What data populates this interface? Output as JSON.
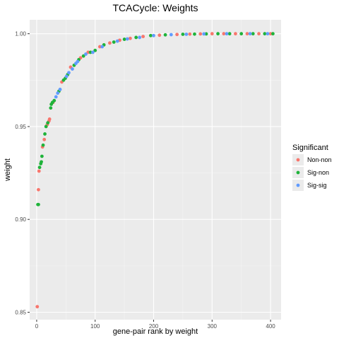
{
  "chart_data": {
    "type": "scatter",
    "title": "TCACycle: Weights",
    "xlabel": "gene-pair rank by weight",
    "ylabel": "weight",
    "xlim": [
      -12,
      418
    ],
    "ylim": [
      0.846,
      1.0075
    ],
    "x_ticks": [
      {
        "value": 0,
        "label": "0"
      },
      {
        "value": 100,
        "label": "100"
      },
      {
        "value": 200,
        "label": "200"
      },
      {
        "value": 300,
        "label": "300"
      },
      {
        "value": 400,
        "label": "400"
      }
    ],
    "y_ticks": [
      {
        "value": 0.85,
        "label": "0.85"
      },
      {
        "value": 0.9,
        "label": "0.90"
      },
      {
        "value": 0.95,
        "label": "0.95"
      },
      {
        "value": 1.0,
        "label": "1.00"
      }
    ],
    "grid": true,
    "legend": {
      "title": "Significant",
      "placement": "right",
      "entries": [
        "Non-non",
        "Sig-non",
        "Sig-sig"
      ]
    },
    "series": [
      {
        "name": "Non-non",
        "color": "#f8766d",
        "points": [
          [
            1,
            0.853
          ],
          [
            3,
            0.916
          ],
          [
            4,
            0.926
          ],
          [
            10,
            0.939
          ],
          [
            13,
            0.943
          ],
          [
            18,
            0.951
          ],
          [
            21,
            0.953
          ],
          [
            22,
            0.954
          ],
          [
            28,
            0.963
          ],
          [
            43,
            0.974
          ],
          [
            58,
            0.982
          ],
          [
            75,
            0.987
          ],
          [
            88,
            0.99
          ],
          [
            108,
            0.993
          ],
          [
            125,
            0.995
          ],
          [
            142,
            0.9965
          ],
          [
            160,
            0.9975
          ],
          [
            182,
            0.9985
          ],
          [
            210,
            0.9992
          ],
          [
            240,
            0.9996
          ],
          [
            262,
            0.9998
          ],
          [
            280,
            0.9999
          ],
          [
            300,
            1.0
          ],
          [
            320,
            1.0
          ],
          [
            340,
            1.0
          ],
          [
            360,
            1.0
          ],
          [
            380,
            1.0
          ],
          [
            400,
            1.0
          ]
        ]
      },
      {
        "name": "Sig-non",
        "color": "#1fb33a",
        "points": [
          [
            2,
            0.908
          ],
          [
            3,
            0.908
          ],
          [
            5,
            0.928
          ],
          [
            7,
            0.93
          ],
          [
            8,
            0.931
          ],
          [
            9,
            0.934
          ],
          [
            11,
            0.94
          ],
          [
            14,
            0.946
          ],
          [
            16,
            0.95
          ],
          [
            19,
            0.952
          ],
          [
            24,
            0.96
          ],
          [
            25,
            0.962
          ],
          [
            27,
            0.963
          ],
          [
            30,
            0.964
          ],
          [
            38,
            0.969
          ],
          [
            46,
            0.975
          ],
          [
            49,
            0.976
          ],
          [
            53,
            0.978
          ],
          [
            64,
            0.983
          ],
          [
            72,
            0.986
          ],
          [
            80,
            0.988
          ],
          [
            92,
            0.99
          ],
          [
            100,
            0.991
          ],
          [
            115,
            0.994
          ],
          [
            132,
            0.9955
          ],
          [
            150,
            0.997
          ],
          [
            170,
            0.998
          ],
          [
            195,
            0.999
          ],
          [
            220,
            0.9994
          ],
          [
            250,
            0.9997
          ],
          [
            270,
            0.9998
          ],
          [
            290,
            0.9999
          ],
          [
            310,
            1.0
          ],
          [
            330,
            1.0
          ],
          [
            350,
            1.0
          ],
          [
            370,
            1.0
          ],
          [
            390,
            1.0
          ],
          [
            404,
            1.0
          ]
        ]
      },
      {
        "name": "Sig-sig",
        "color": "#619cff",
        "points": [
          [
            33,
            0.966
          ],
          [
            36,
            0.968
          ],
          [
            40,
            0.97
          ],
          [
            51,
            0.977
          ],
          [
            55,
            0.979
          ],
          [
            61,
            0.981
          ],
          [
            67,
            0.984
          ],
          [
            70,
            0.985
          ],
          [
            84,
            0.989
          ],
          [
            96,
            0.99
          ],
          [
            112,
            0.993
          ],
          [
            138,
            0.996
          ],
          [
            155,
            0.9972
          ],
          [
            176,
            0.998
          ],
          [
            200,
            0.999
          ],
          [
            230,
            0.9995
          ],
          [
            256,
            0.9997
          ],
          [
            286,
            0.9999
          ],
          [
            325,
            1.0
          ],
          [
            365,
            1.0
          ],
          [
            395,
            1.0
          ]
        ]
      }
    ]
  }
}
